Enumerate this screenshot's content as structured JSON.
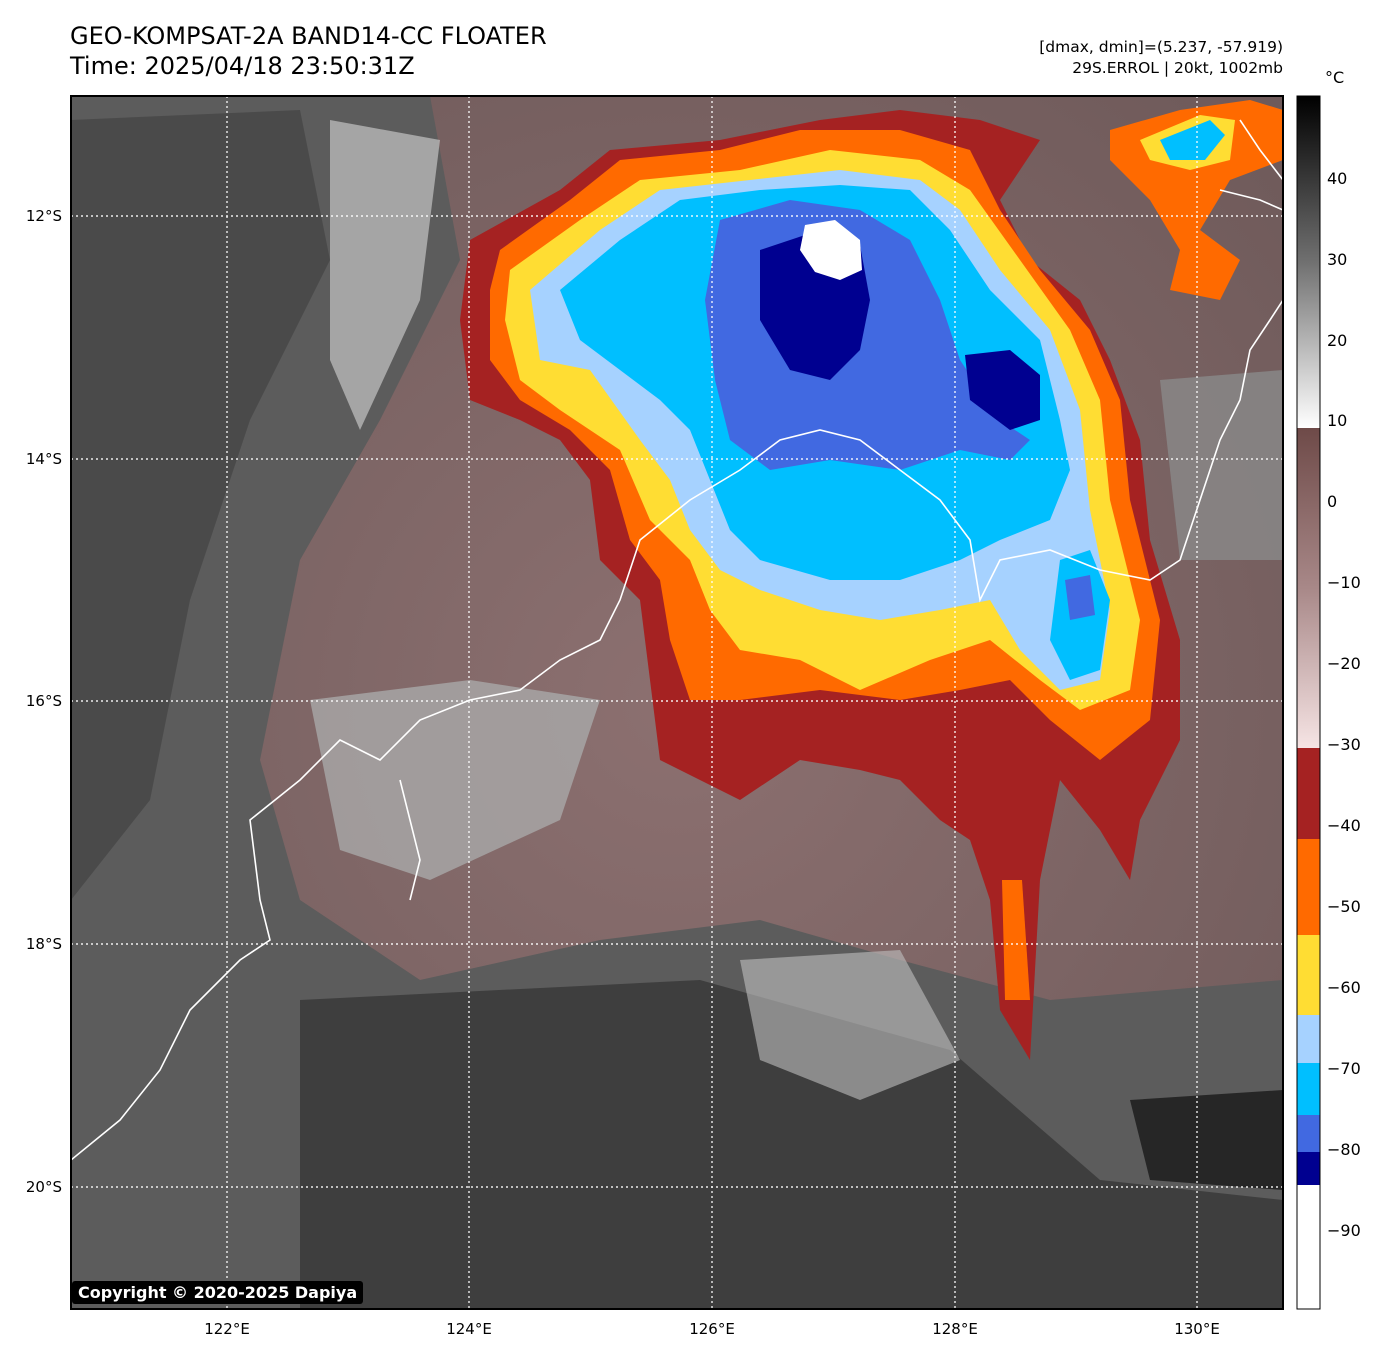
{
  "header": {
    "title_line1": "GEO-KOMPSAT-2A BAND14-CC FLOATER",
    "title_line2": "Time: 2025/04/18 23:50:31Z",
    "info_line1": "[dmax, dmin]=(5.237, -57.919)",
    "info_line2": "29S.ERROL | 20kt, 1002mb"
  },
  "map": {
    "lon_ticks": [
      "122°E",
      "124°E",
      "126°E",
      "128°E",
      "130°E"
    ],
    "lat_ticks": [
      "12°S",
      "14°S",
      "16°S",
      "18°S",
      "20°S"
    ],
    "lon_range": [
      120.7,
      130.7
    ],
    "lat_range": [
      -11.0,
      -21.0
    ]
  },
  "colorbar": {
    "unit": "°C",
    "range": [
      -100,
      50
    ],
    "labels": [
      "40",
      "30",
      "20",
      "10",
      "0",
      "−10",
      "−20",
      "−30",
      "−40",
      "−50",
      "−60",
      "−70",
      "−80",
      "−90"
    ],
    "label_values": [
      40,
      30,
      20,
      10,
      0,
      -10,
      -20,
      -30,
      -40,
      -50,
      -60,
      -70,
      -80,
      -90
    ],
    "colors": {
      "white_cold": "#ffffff",
      "navy": "#000090",
      "royal": "#4169e1",
      "cyan": "#00bfff",
      "lightblue": "#a6d2ff",
      "yellow": "#ffdd33",
      "orange": "#ff6a00",
      "darkred": "#a52222",
      "pink": "#f4dcdc",
      "brown": "#6e4a48",
      "black": "#000000"
    }
  },
  "copyright": "Copyright © 2020-2025 Dapiya"
}
